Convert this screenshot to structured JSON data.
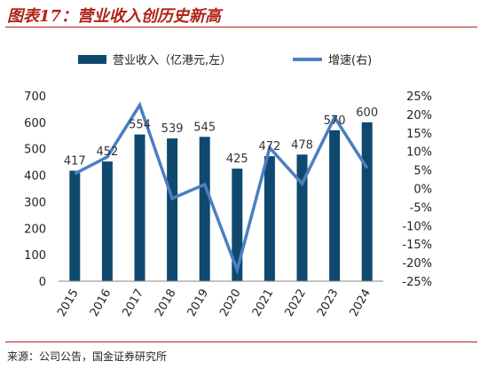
{
  "title": "图表17：营业收入创历史新高",
  "source": "来源：公司公告，国金证券研究所",
  "colors": {
    "bar": "#0f4a6e",
    "line": "#4a7fc1",
    "accent": "#b02418"
  },
  "chart_data": {
    "type": "bar",
    "categories": [
      "2015",
      "2016",
      "2017",
      "2018",
      "2019",
      "2020",
      "2021",
      "2022",
      "2023",
      "2024"
    ],
    "series": [
      {
        "name": "营业收入（亿港元,左）",
        "type": "bar",
        "axis": "left",
        "values": [
          417,
          452,
          554,
          539,
          545,
          425,
          472,
          478,
          570,
          600
        ]
      },
      {
        "name": "增速(右)",
        "type": "line",
        "axis": "right",
        "values": [
          4,
          8.5,
          22.5,
          -2.7,
          1.1,
          -22,
          11,
          1.3,
          19.2,
          5.5
        ]
      }
    ],
    "ylim_left": [
      0,
      700
    ],
    "yticks_left": [
      "0",
      "100",
      "200",
      "300",
      "400",
      "500",
      "600",
      "700"
    ],
    "ylim_right": [
      -25,
      25
    ],
    "yticks_right": [
      "-25%",
      "-20%",
      "-15%",
      "-10%",
      "-5%",
      "0%",
      "5%",
      "10%",
      "15%",
      "20%",
      "25%"
    ],
    "data_labels": [
      "417",
      "452",
      "554",
      "539",
      "545",
      "425",
      "472",
      "478",
      "570",
      "600"
    ],
    "legend_position": "top"
  }
}
